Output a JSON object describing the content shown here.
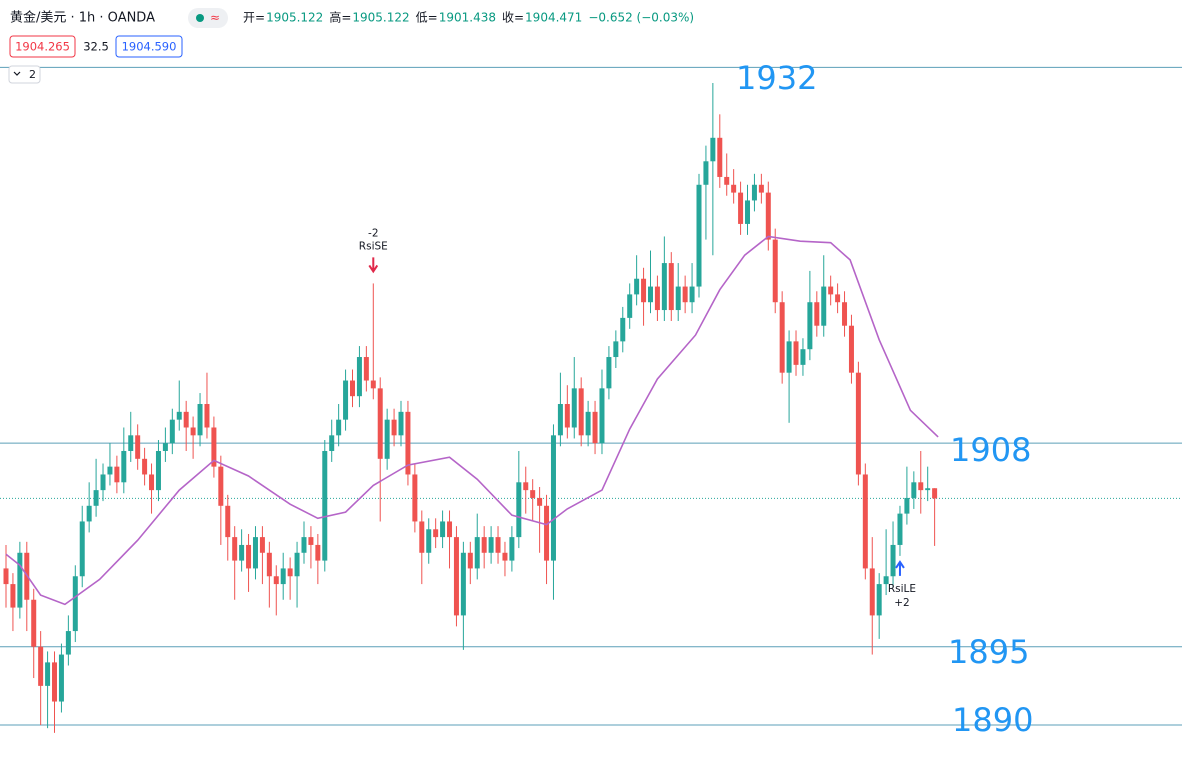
{
  "header": {
    "symbol": "黄金/美元 · 1h · OANDA",
    "ohlc_labels": [
      "开=",
      "高=",
      "低=",
      "收="
    ],
    "change": "−0.652 (−0.03%)",
    "bid": "1904.265",
    "spread": "32.5",
    "ask": "1904.590",
    "collapse": "2"
  },
  "chart_data": {
    "type": "candlestick",
    "ylim": [
      1887,
      1936.3
    ],
    "up_color": "#26a69a",
    "down_color": "#ef5350",
    "level_color": "#5b9fb8",
    "label_color": "#2196f3",
    "ma_color": "#b565c8",
    "levels": [
      1932,
      1908,
      1895,
      1890
    ],
    "signals": [
      {
        "index": 53,
        "qty": "-2",
        "label": "RsiSE",
        "color": "#e0294a"
      },
      {
        "index": 129,
        "qty": "+2",
        "label": "RsiLE",
        "color": "#2962ff"
      }
    ],
    "ma": {
      "x": [
        0,
        2,
        5,
        8.5,
        13.5,
        19,
        25,
        30,
        35,
        41,
        45,
        49,
        53,
        58,
        64,
        68,
        73,
        78,
        81,
        86,
        90,
        94,
        99.5,
        103,
        106.6,
        110,
        114.6,
        119,
        121.8,
        126,
        130.5,
        134.5
      ],
      "values": [
        1900.9,
        1900.2,
        1898.3,
        1897.7,
        1899.3,
        1901.8,
        1905,
        1906.9,
        1905.9,
        1904.1,
        1903.2,
        1903.6,
        1905.3,
        1906.6,
        1907.1,
        1905.7,
        1903.4,
        1902.8,
        1903.8,
        1905,
        1908.9,
        1912.1,
        1914.9,
        1917.8,
        1920,
        1921.2,
        1920.9,
        1920.8,
        1919.7,
        1914.6,
        1910.1,
        1908.4
      ]
    },
    "candles": [
      [
        1900,
        1901.5,
        1897.5,
        1899
      ],
      [
        1899,
        1899.7,
        1896,
        1897.5
      ],
      [
        1897.5,
        1901.7,
        1896.8,
        1901
      ],
      [
        1901,
        1901.7,
        1896,
        1898
      ],
      [
        1898,
        1898.7,
        1893,
        1895
      ],
      [
        1895,
        1896,
        1890,
        1892.5
      ],
      [
        1892.5,
        1894.7,
        1889.8,
        1894
      ],
      [
        1894,
        1894.7,
        1889.5,
        1891.5
      ],
      [
        1891.5,
        1895.2,
        1890.8,
        1894.5
      ],
      [
        1894.5,
        1897,
        1893.8,
        1896
      ],
      [
        1896,
        1900.2,
        1895.3,
        1899.5
      ],
      [
        1899.5,
        1904,
        1898.8,
        1903
      ],
      [
        1903,
        1905.5,
        1902.3,
        1904
      ],
      [
        1904,
        1907,
        1903.3,
        1905
      ],
      [
        1905,
        1906.7,
        1904.3,
        1906
      ],
      [
        1906,
        1908,
        1905.3,
        1906.5
      ],
      [
        1906.5,
        1907.2,
        1904.8,
        1905.5
      ],
      [
        1905.5,
        1909,
        1904.8,
        1907.5
      ],
      [
        1907.5,
        1910,
        1906.8,
        1908.5
      ],
      [
        1908.5,
        1909.2,
        1906.3,
        1907
      ],
      [
        1907,
        1907.7,
        1905.3,
        1906
      ],
      [
        1906,
        1906.7,
        1903.5,
        1905
      ],
      [
        1905,
        1908.2,
        1904.3,
        1907.5
      ],
      [
        1907.5,
        1909,
        1906.8,
        1908
      ],
      [
        1908,
        1910.2,
        1907.3,
        1909.5
      ],
      [
        1909.5,
        1912,
        1908.8,
        1910
      ],
      [
        1910,
        1910.7,
        1907.5,
        1909
      ],
      [
        1909,
        1909.7,
        1907,
        1908.5
      ],
      [
        1908.5,
        1911.2,
        1907.8,
        1910.5
      ],
      [
        1910.5,
        1912.5,
        1908.3,
        1909
      ],
      [
        1909,
        1909.7,
        1905.8,
        1906.5
      ],
      [
        1906.5,
        1907.2,
        1901.5,
        1904
      ],
      [
        1904,
        1904.7,
        1900.5,
        1902
      ],
      [
        1902,
        1902.7,
        1898,
        1900.5
      ],
      [
        1900.5,
        1902.5,
        1899.8,
        1901.5
      ],
      [
        1901.5,
        1902.2,
        1898.5,
        1900
      ],
      [
        1900,
        1902.7,
        1899.3,
        1902
      ],
      [
        1902,
        1902.7,
        1899,
        1901
      ],
      [
        1901,
        1901.7,
        1897.5,
        1899.5
      ],
      [
        1899.5,
        1900.2,
        1897,
        1899
      ],
      [
        1899,
        1901,
        1898,
        1900
      ],
      [
        1900,
        1900.7,
        1898,
        1899.5
      ],
      [
        1899.5,
        1901.7,
        1897.5,
        1901
      ],
      [
        1901,
        1903,
        1900.3,
        1902
      ],
      [
        1902,
        1902.7,
        1900,
        1901.5
      ],
      [
        1901.5,
        1902.2,
        1899,
        1900.5
      ],
      [
        1900.5,
        1908.2,
        1899.8,
        1907.5
      ],
      [
        1907.5,
        1909.5,
        1906.8,
        1908.5
      ],
      [
        1908.5,
        1910.5,
        1907.8,
        1909.5
      ],
      [
        1909.5,
        1912.7,
        1908.8,
        1912
      ],
      [
        1912,
        1912.7,
        1910.3,
        1911
      ],
      [
        1911,
        1914.2,
        1910.3,
        1913.5
      ],
      [
        1913.5,
        1914.2,
        1911.3,
        1912
      ],
      [
        1912,
        1918.2,
        1910.8,
        1911.5
      ],
      [
        1911.5,
        1912.2,
        1903,
        1907
      ],
      [
        1907,
        1910.2,
        1906.3,
        1909.5
      ],
      [
        1909.5,
        1910.2,
        1907.8,
        1908.5
      ],
      [
        1908.5,
        1910.7,
        1907.8,
        1910
      ],
      [
        1910,
        1910.7,
        1905.3,
        1906
      ],
      [
        1906,
        1906.7,
        1902.3,
        1903
      ],
      [
        1903,
        1903.7,
        1899,
        1901
      ],
      [
        1901,
        1903.2,
        1900.3,
        1902.5
      ],
      [
        1902.5,
        1903.2,
        1901.3,
        1902
      ],
      [
        1902,
        1903.7,
        1901.3,
        1903
      ],
      [
        1903,
        1903.7,
        1900,
        1902
      ],
      [
        1902,
        1902.7,
        1896.3,
        1897
      ],
      [
        1897,
        1901.7,
        1894.8,
        1901
      ],
      [
        1901,
        1901.7,
        1899,
        1900
      ],
      [
        1900,
        1903.5,
        1899.3,
        1902
      ],
      [
        1902,
        1902.7,
        1900,
        1901
      ],
      [
        1901,
        1902.7,
        1900.3,
        1902
      ],
      [
        1902,
        1902.7,
        1900.3,
        1901
      ],
      [
        1901,
        1901.7,
        1899.5,
        1900.5
      ],
      [
        1900.5,
        1902.7,
        1899.8,
        1902
      ],
      [
        1902,
        1907.5,
        1901.3,
        1905.5
      ],
      [
        1905.5,
        1906.5,
        1903.5,
        1905
      ],
      [
        1905,
        1905.7,
        1903,
        1904.5
      ],
      [
        1904.5,
        1905.2,
        1901,
        1904
      ],
      [
        1904,
        1904.7,
        1899,
        1900.5
      ],
      [
        1900.5,
        1909.2,
        1898,
        1908.5
      ],
      [
        1908.5,
        1912.5,
        1907.8,
        1910.5
      ],
      [
        1910.5,
        1911.7,
        1908.3,
        1909
      ],
      [
        1909,
        1913.5,
        1908.3,
        1911.5
      ],
      [
        1911.5,
        1912.2,
        1907.8,
        1908.5
      ],
      [
        1908.5,
        1910.7,
        1907.8,
        1910
      ],
      [
        1910,
        1910.7,
        1907.3,
        1908
      ],
      [
        1908,
        1912.7,
        1907.3,
        1911.5
      ],
      [
        1911.5,
        1914.2,
        1910.8,
        1913.5
      ],
      [
        1913.5,
        1915.2,
        1912.8,
        1914.5
      ],
      [
        1914.5,
        1916.7,
        1913.8,
        1916
      ],
      [
        1916,
        1918.2,
        1915.3,
        1917.5
      ],
      [
        1917.5,
        1920,
        1916.8,
        1918.5
      ],
      [
        1918.5,
        1919.2,
        1915.5,
        1917
      ],
      [
        1917,
        1920.3,
        1916.3,
        1918
      ],
      [
        1918,
        1918.7,
        1915.8,
        1916.5
      ],
      [
        1916.5,
        1921.2,
        1915.8,
        1919.5
      ],
      [
        1919.5,
        1920.2,
        1915.8,
        1916.5
      ],
      [
        1916.5,
        1919.5,
        1915.8,
        1918
      ],
      [
        1918,
        1918.7,
        1916.3,
        1917
      ],
      [
        1917,
        1919.5,
        1916.3,
        1918
      ],
      [
        1918,
        1925.2,
        1917.3,
        1924.5
      ],
      [
        1924.5,
        1927,
        1921,
        1926
      ],
      [
        1926,
        1931,
        1920,
        1927.5
      ],
      [
        1927.5,
        1929,
        1924.3,
        1925
      ],
      [
        1925,
        1926.5,
        1923.8,
        1924.5
      ],
      [
        1924.5,
        1925.5,
        1923.3,
        1924
      ],
      [
        1924,
        1924.7,
        1921.3,
        1922
      ],
      [
        1922,
        1924.5,
        1921.3,
        1923.5
      ],
      [
        1923.5,
        1925.2,
        1922.8,
        1924.5
      ],
      [
        1924.5,
        1925.2,
        1923.3,
        1924
      ],
      [
        1924,
        1924.7,
        1920.3,
        1921
      ],
      [
        1921,
        1921.7,
        1916.3,
        1917
      ],
      [
        1917,
        1917.7,
        1911.8,
        1912.5
      ],
      [
        1912.5,
        1915.2,
        1909.3,
        1914.5
      ],
      [
        1914.5,
        1915.2,
        1912.3,
        1913
      ],
      [
        1913,
        1914.7,
        1912.3,
        1914
      ],
      [
        1914,
        1919,
        1913.3,
        1917
      ],
      [
        1917,
        1917.7,
        1914.8,
        1915.5
      ],
      [
        1915.5,
        1920,
        1914.8,
        1918
      ],
      [
        1918,
        1918.7,
        1916.8,
        1917.5
      ],
      [
        1917.5,
        1918.2,
        1916.3,
        1917
      ],
      [
        1917,
        1917.7,
        1914.8,
        1915.5
      ],
      [
        1915.5,
        1916.2,
        1911.8,
        1912.5
      ],
      [
        1912.5,
        1913.2,
        1905.3,
        1906
      ],
      [
        1906,
        1906.7,
        1899.3,
        1900
      ],
      [
        1900,
        1902,
        1894.5,
        1897
      ],
      [
        1897,
        1899.7,
        1895.5,
        1899
      ],
      [
        1899,
        1902.5,
        1898.3,
        1899.5
      ],
      [
        1899.5,
        1903,
        1898.8,
        1901.5
      ],
      [
        1901.5,
        1904,
        1900.8,
        1903.5
      ],
      [
        1903.5,
        1906.5,
        1902.8,
        1904.5
      ],
      [
        1904.5,
        1906.2,
        1903.8,
        1905.5
      ],
      [
        1905.5,
        1907.5,
        1903.5,
        1905
      ],
      [
        1905,
        1906.5,
        1904.3,
        1905.122
      ],
      [
        1905.122,
        1905.122,
        1901.438,
        1904.471
      ]
    ]
  }
}
